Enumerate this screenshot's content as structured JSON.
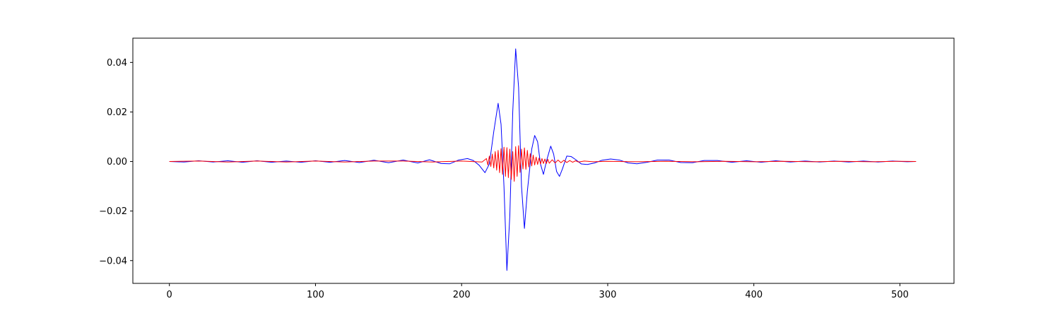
{
  "chart_data": {
    "type": "line",
    "title": "",
    "xlabel": "",
    "ylabel": "",
    "xlim": [
      -25,
      537
    ],
    "ylim": [
      -0.0492,
      0.0498
    ],
    "x_ticks": [
      0,
      100,
      200,
      300,
      400,
      500
    ],
    "x_tick_labels": [
      "0",
      "100",
      "200",
      "300",
      "400",
      "500"
    ],
    "y_ticks": [
      -0.04,
      -0.02,
      0.0,
      0.02,
      0.04
    ],
    "y_tick_labels": [
      "−0.04",
      "−0.02",
      "0.00",
      "0.02",
      "0.04"
    ],
    "grid": false,
    "legend": "none",
    "series": [
      {
        "color": "#0000ff",
        "points": [
          [
            0,
            0.0
          ],
          [
            10,
            -0.0002
          ],
          [
            20,
            0.0003
          ],
          [
            30,
            -0.0002
          ],
          [
            40,
            0.0003
          ],
          [
            50,
            -0.0003
          ],
          [
            60,
            0.0003
          ],
          [
            70,
            -0.0003
          ],
          [
            80,
            0.0002
          ],
          [
            90,
            -0.0003
          ],
          [
            100,
            0.0003
          ],
          [
            110,
            -0.0003
          ],
          [
            120,
            0.0004
          ],
          [
            130,
            -0.0004
          ],
          [
            140,
            0.0005
          ],
          [
            150,
            -0.0005
          ],
          [
            160,
            0.0006
          ],
          [
            170,
            -0.0006
          ],
          [
            178,
            0.0007
          ],
          [
            186,
            -0.0008
          ],
          [
            192,
            -0.0009
          ],
          [
            198,
            0.0006
          ],
          [
            204,
            0.0012
          ],
          [
            208,
            0.0004
          ],
          [
            212,
            -0.0015
          ],
          [
            216,
            -0.0045
          ],
          [
            219,
            -0.001
          ],
          [
            222,
            0.012
          ],
          [
            225,
            0.0235
          ],
          [
            227,
            0.015
          ],
          [
            229,
            -0.01
          ],
          [
            231,
            -0.044
          ],
          [
            233,
            -0.022
          ],
          [
            235,
            0.02
          ],
          [
            237,
            0.0455
          ],
          [
            239,
            0.03
          ],
          [
            241,
            -0.01
          ],
          [
            243,
            -0.027
          ],
          [
            245,
            -0.012
          ],
          [
            248,
            0.005
          ],
          [
            250,
            0.0105
          ],
          [
            252,
            0.008
          ],
          [
            254,
            -0.001
          ],
          [
            256,
            -0.0052
          ],
          [
            258,
            0.0
          ],
          [
            261,
            0.0062
          ],
          [
            263,
            0.003
          ],
          [
            265,
            -0.004
          ],
          [
            267,
            -0.006
          ],
          [
            269,
            -0.003
          ],
          [
            272,
            0.0022
          ],
          [
            275,
            0.002
          ],
          [
            278,
            0.0008
          ],
          [
            282,
            -0.001
          ],
          [
            286,
            -0.0012
          ],
          [
            291,
            -0.0006
          ],
          [
            296,
            0.0005
          ],
          [
            302,
            0.001
          ],
          [
            308,
            0.0006
          ],
          [
            314,
            -0.0006
          ],
          [
            320,
            -0.0009
          ],
          [
            327,
            -0.0003
          ],
          [
            334,
            0.0006
          ],
          [
            342,
            0.0006
          ],
          [
            350,
            -0.0004
          ],
          [
            358,
            -0.0005
          ],
          [
            366,
            0.0004
          ],
          [
            375,
            0.0004
          ],
          [
            385,
            -0.0003
          ],
          [
            395,
            0.0003
          ],
          [
            405,
            -0.0003
          ],
          [
            415,
            0.0003
          ],
          [
            425,
            -0.0002
          ],
          [
            435,
            0.0002
          ],
          [
            445,
            -0.0002
          ],
          [
            455,
            0.0002
          ],
          [
            465,
            -0.0002
          ],
          [
            475,
            0.0002
          ],
          [
            485,
            -0.0002
          ],
          [
            495,
            0.0002
          ],
          [
            505,
            -0.0001
          ],
          [
            511,
            0.0
          ]
        ]
      },
      {
        "color": "#ff0000",
        "points": [
          [
            0,
            0.0
          ],
          [
            20,
            0.0002
          ],
          [
            40,
            -0.0002
          ],
          [
            60,
            0.0002
          ],
          [
            80,
            -0.0002
          ],
          [
            100,
            0.0002
          ],
          [
            120,
            -0.0002
          ],
          [
            140,
            0.0002
          ],
          [
            160,
            0.0002
          ],
          [
            180,
            -0.0002
          ],
          [
            200,
            0.0002
          ],
          [
            214,
            -0.0002
          ],
          [
            217,
            0.0012
          ],
          [
            218,
            -0.0014
          ],
          [
            219,
            0.0022
          ],
          [
            220,
            -0.002
          ],
          [
            221,
            0.003
          ],
          [
            222,
            -0.0026
          ],
          [
            223,
            0.004
          ],
          [
            224,
            -0.0035
          ],
          [
            225,
            0.0045
          ],
          [
            226,
            -0.0045
          ],
          [
            227,
            0.0052
          ],
          [
            228,
            -0.0052
          ],
          [
            229,
            0.0058
          ],
          [
            230,
            -0.006
          ],
          [
            231,
            0.0056
          ],
          [
            232,
            -0.0065
          ],
          [
            233,
            0.005
          ],
          [
            234,
            -0.0072
          ],
          [
            235,
            0.004
          ],
          [
            236,
            -0.008
          ],
          [
            237,
            0.006
          ],
          [
            238,
            -0.006
          ],
          [
            239,
            0.0064
          ],
          [
            240,
            -0.0044
          ],
          [
            241,
            0.005
          ],
          [
            242,
            -0.003
          ],
          [
            243,
            0.0055
          ],
          [
            244,
            -0.0032
          ],
          [
            245,
            0.0045
          ],
          [
            246,
            -0.0022
          ],
          [
            247,
            0.0032
          ],
          [
            248,
            -0.0018
          ],
          [
            249,
            0.0026
          ],
          [
            250,
            -0.0014
          ],
          [
            251,
            0.0018
          ],
          [
            252,
            -0.0012
          ],
          [
            253,
            0.0014
          ],
          [
            254,
            -0.001
          ],
          [
            255,
            0.0012
          ],
          [
            256,
            -0.0008
          ],
          [
            257,
            0.001
          ],
          [
            258,
            -0.0008
          ],
          [
            259,
            0.0009
          ],
          [
            260,
            -0.0007
          ],
          [
            262,
            0.0007
          ],
          [
            264,
            -0.0006
          ],
          [
            266,
            0.0006
          ],
          [
            268,
            -0.0005
          ],
          [
            270,
            0.0005
          ],
          [
            272,
            -0.0004
          ],
          [
            274,
            0.0004
          ],
          [
            276,
            -0.0003
          ],
          [
            278,
            0.0003
          ],
          [
            280,
            -0.0002
          ],
          [
            284,
            0.0002
          ],
          [
            290,
            -0.0001
          ],
          [
            300,
            0.0001
          ],
          [
            320,
            -0.0001
          ],
          [
            340,
            0.0001
          ],
          [
            360,
            -0.0001
          ],
          [
            380,
            0.0001
          ],
          [
            400,
            -0.0001
          ],
          [
            420,
            0.0001
          ],
          [
            440,
            -0.0001
          ],
          [
            460,
            0.0001
          ],
          [
            480,
            -0.0001
          ],
          [
            500,
            0.0001
          ],
          [
            511,
            0.0
          ]
        ]
      }
    ]
  }
}
